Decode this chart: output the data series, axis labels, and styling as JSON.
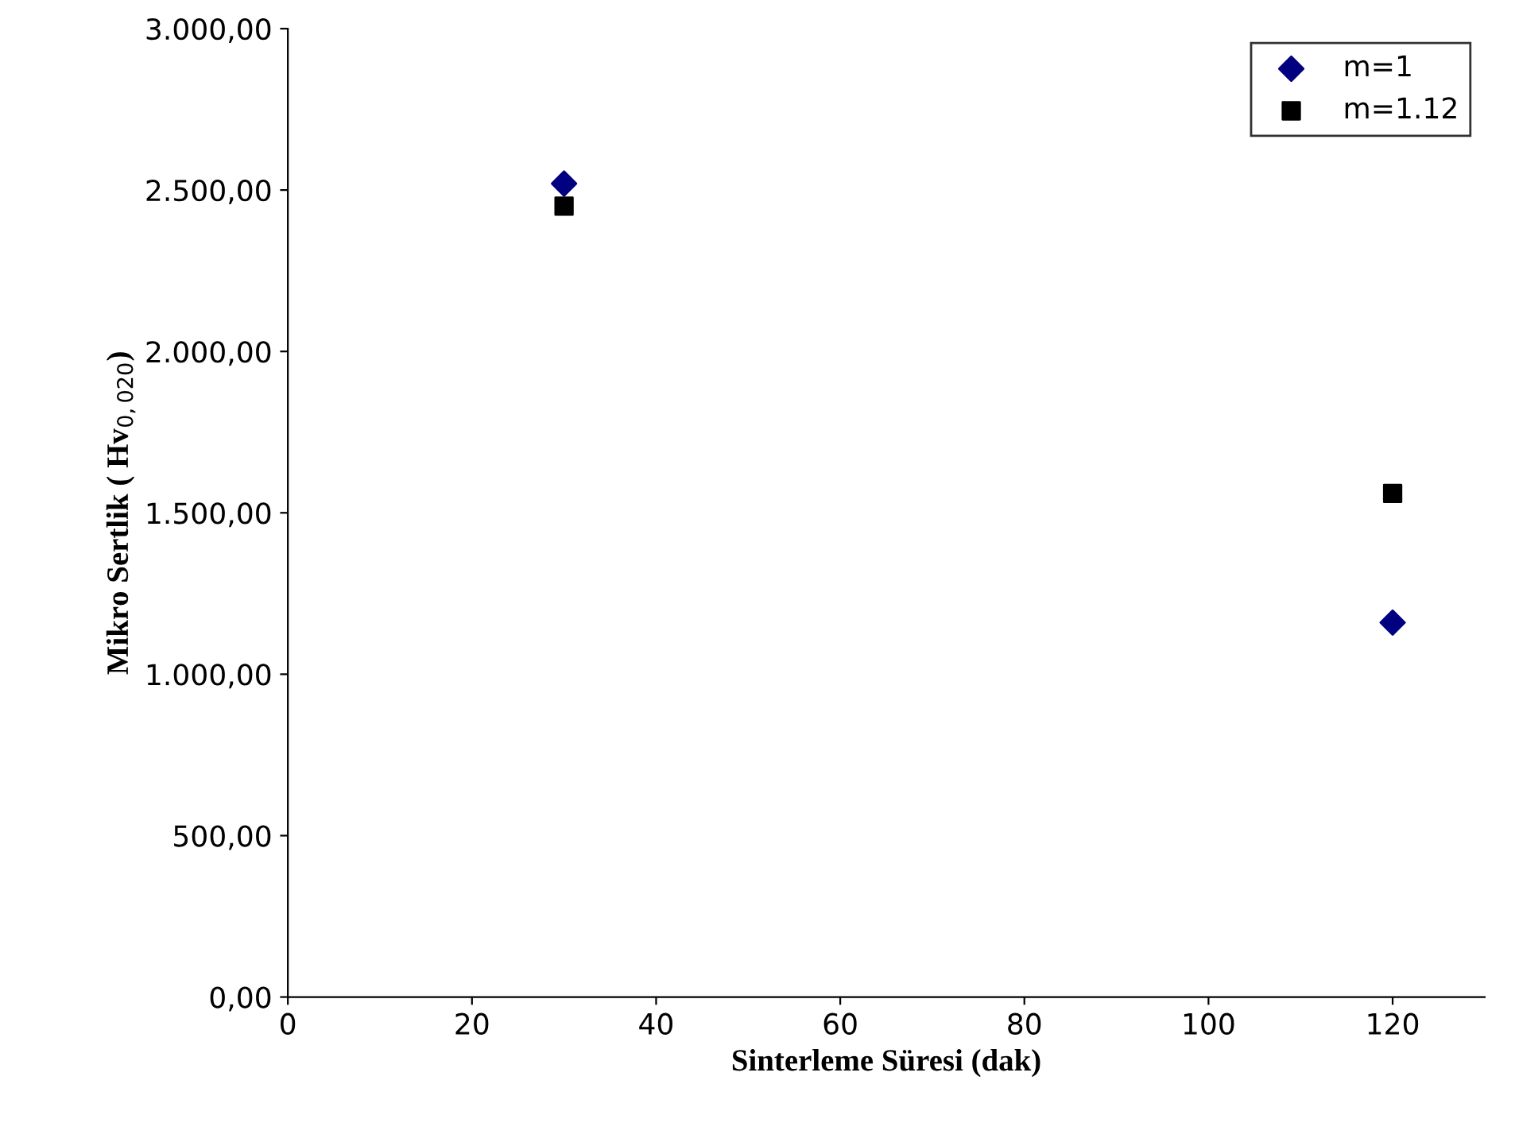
{
  "chart_data": {
    "type": "scatter",
    "xlabel": "Sinterleme Süresi (dak)",
    "ylabel": "Mikro Sertlik ( Hv$_{0,020}$)",
    "x": [
      30,
      120
    ],
    "series": [
      {
        "name": "m=1",
        "color": "#000080",
        "values": [
          2520,
          1160
        ],
        "marker": "diamond"
      },
      {
        "name": "m=1.12",
        "color": "#000000",
        "values": [
          2450,
          1560
        ],
        "marker": "square"
      }
    ],
    "xlim": [
      0,
      130
    ],
    "xticks": [
      0,
      20,
      40,
      60,
      80,
      100,
      120
    ],
    "ylim": [
      0,
      3000
    ],
    "yticks": [
      {
        "value": 0,
        "label": "0,00"
      },
      {
        "value": 500,
        "label": "500,00"
      },
      {
        "value": 1000,
        "label": "1.000,00"
      },
      {
        "value": 1500,
        "label": "1.500,00"
      },
      {
        "value": 2000,
        "label": "2.000,00"
      },
      {
        "value": 2500,
        "label": "2.500,00"
      },
      {
        "value": 3000,
        "label": "3.000,00"
      }
    ],
    "grid": false,
    "legend": "top right"
  }
}
